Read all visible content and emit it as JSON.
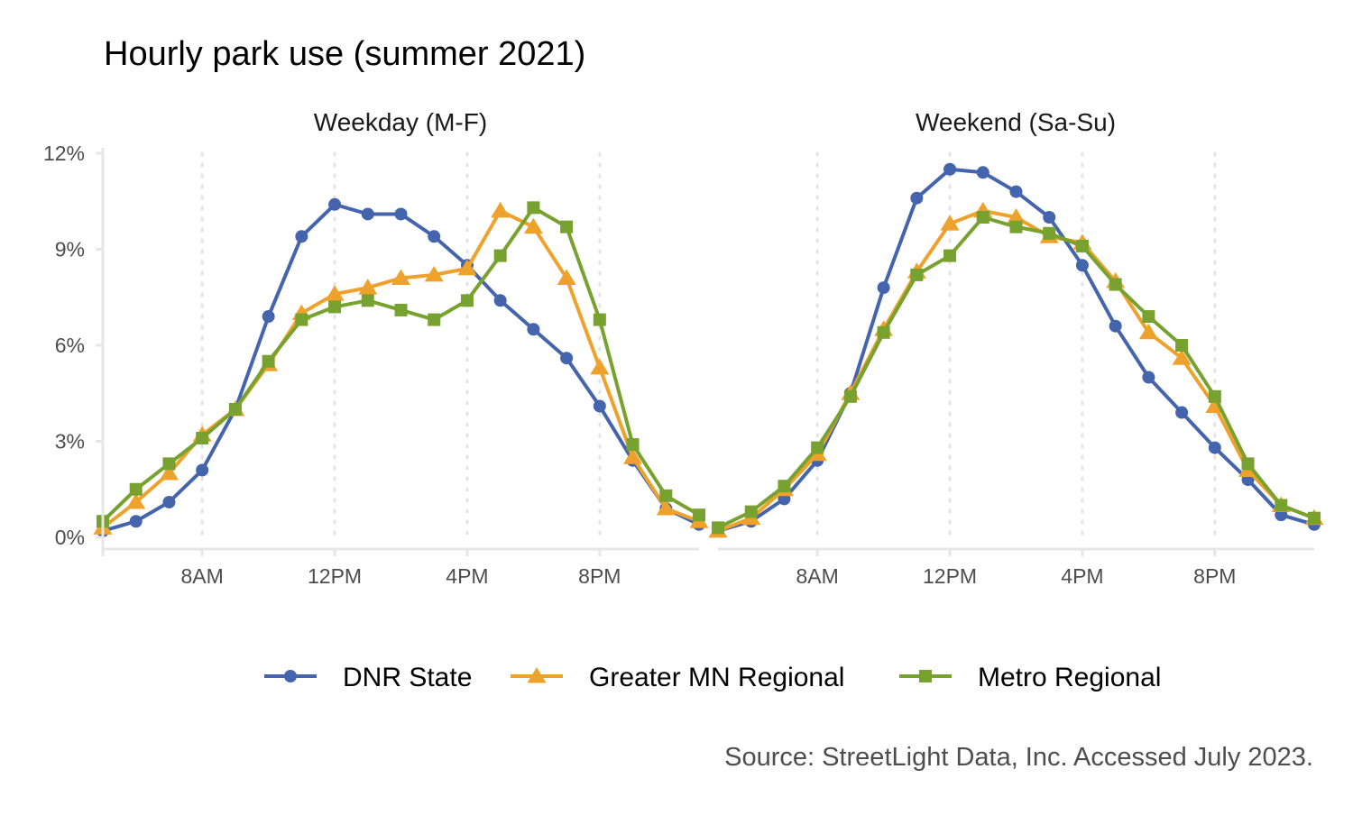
{
  "chart_data": {
    "type": "line",
    "title": "Hourly park use (summer 2021)",
    "caption": "Source: StreetLight Data, Inc. Accessed July 2023.",
    "x": [
      5,
      6,
      7,
      8,
      9,
      10,
      11,
      12,
      13,
      14,
      15,
      16,
      17,
      18,
      19,
      20,
      21,
      22,
      23
    ],
    "xticks": [
      {
        "value": 8,
        "label": "8AM"
      },
      {
        "value": 12,
        "label": "12PM"
      },
      {
        "value": 16,
        "label": "4PM"
      },
      {
        "value": 20,
        "label": "8PM"
      }
    ],
    "xlim": [
      5,
      23
    ],
    "ylim": [
      0,
      12
    ],
    "yticks": [
      {
        "value": 0,
        "label": "0%"
      },
      {
        "value": 3,
        "label": "3%"
      },
      {
        "value": 6,
        "label": "6%"
      },
      {
        "value": 9,
        "label": "9%"
      },
      {
        "value": 12,
        "label": "12%"
      }
    ],
    "grid": "vertical dotted at x ticks",
    "legend_position": "bottom",
    "series_styles": [
      {
        "name": "DNR State",
        "color": "#4464AD",
        "marker": "circle"
      },
      {
        "name": "Greater MN Regional",
        "color": "#EFA22B",
        "marker": "triangle"
      },
      {
        "name": "Metro Regional",
        "color": "#78A22F",
        "marker": "square"
      }
    ],
    "panels": [
      {
        "strip": "Weekday (M-F)",
        "series": [
          {
            "name": "DNR State",
            "values": [
              0.2,
              0.5,
              1.1,
              2.1,
              4.0,
              6.9,
              9.4,
              10.4,
              10.1,
              10.1,
              9.4,
              8.5,
              7.4,
              6.5,
              5.6,
              4.1,
              2.4,
              0.9,
              0.4
            ]
          },
          {
            "name": "Greater MN Regional",
            "values": [
              0.3,
              1.1,
              2.0,
              3.2,
              4.0,
              5.4,
              7.0,
              7.6,
              7.8,
              8.1,
              8.2,
              8.4,
              10.2,
              9.7,
              8.1,
              5.3,
              2.5,
              0.9,
              0.5
            ]
          },
          {
            "name": "Metro Regional",
            "values": [
              0.5,
              1.5,
              2.3,
              3.1,
              4.0,
              5.5,
              6.8,
              7.2,
              7.4,
              7.1,
              6.8,
              7.4,
              8.8,
              10.3,
              9.7,
              6.8,
              2.9,
              1.3,
              0.7
            ]
          }
        ]
      },
      {
        "strip": "Weekend (Sa-Su)",
        "series": [
          {
            "name": "DNR State",
            "values": [
              0.2,
              0.5,
              1.2,
              2.4,
              4.5,
              7.8,
              10.6,
              11.5,
              11.4,
              10.8,
              10.0,
              8.5,
              6.6,
              5.0,
              3.9,
              2.8,
              1.8,
              0.7,
              0.4
            ]
          },
          {
            "name": "Greater MN Regional",
            "values": [
              0.2,
              0.6,
              1.5,
              2.6,
              4.5,
              6.5,
              8.3,
              9.8,
              10.2,
              10.0,
              9.4,
              9.2,
              8.0,
              6.4,
              5.6,
              4.1,
              2.1,
              1.0,
              0.6
            ]
          },
          {
            "name": "Metro Regional",
            "values": [
              0.3,
              0.8,
              1.6,
              2.8,
              4.4,
              6.4,
              8.2,
              8.8,
              10.0,
              9.7,
              9.5,
              9.1,
              7.9,
              6.9,
              6.0,
              4.4,
              2.3,
              1.0,
              0.6
            ]
          }
        ]
      }
    ]
  }
}
